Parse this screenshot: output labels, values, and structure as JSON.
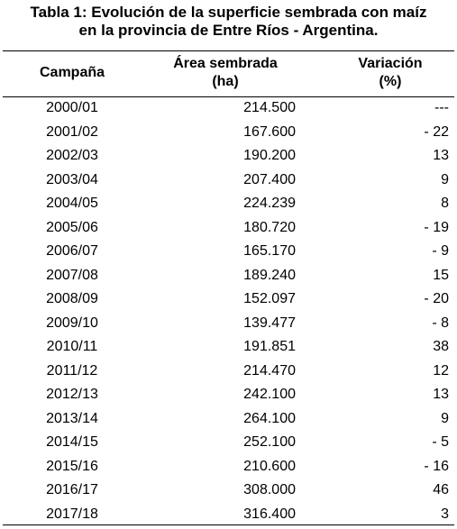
{
  "table": {
    "title_lines": [
      "Tabla 1: Evolución de la superficie sembrada con maíz",
      "en la provincia de Entre Ríos - Argentina."
    ],
    "columns": [
      [
        "Campaña"
      ],
      [
        "Área sembrada",
        "(ha)"
      ],
      [
        "Variación",
        "(%)"
      ]
    ],
    "rows": [
      [
        "2000/01",
        "214.500",
        "---"
      ],
      [
        "2001/02",
        "167.600",
        "- 22"
      ],
      [
        "2002/03",
        "190.200",
        "13"
      ],
      [
        "2003/04",
        "207.400",
        "9"
      ],
      [
        "2004/05",
        "224.239",
        "8"
      ],
      [
        "2005/06",
        "180.720",
        "- 19"
      ],
      [
        "2006/07",
        "165.170",
        "- 9"
      ],
      [
        "2007/08",
        "189.240",
        "15"
      ],
      [
        "2008/09",
        "152.097",
        "- 20"
      ],
      [
        "2009/10",
        "139.477",
        "- 8"
      ],
      [
        "2010/11",
        "191.851",
        "38"
      ],
      [
        "2011/12",
        "214.470",
        "12"
      ],
      [
        "2012/13",
        "242.100",
        "13"
      ],
      [
        "2013/14",
        "264.100",
        "9"
      ],
      [
        "2014/15",
        "252.100",
        "- 5"
      ],
      [
        "2015/16",
        "210.600",
        "- 16"
      ],
      [
        "2016/17",
        "308.000",
        "46"
      ],
      [
        "2017/18",
        "316.400",
        "3"
      ]
    ]
  }
}
